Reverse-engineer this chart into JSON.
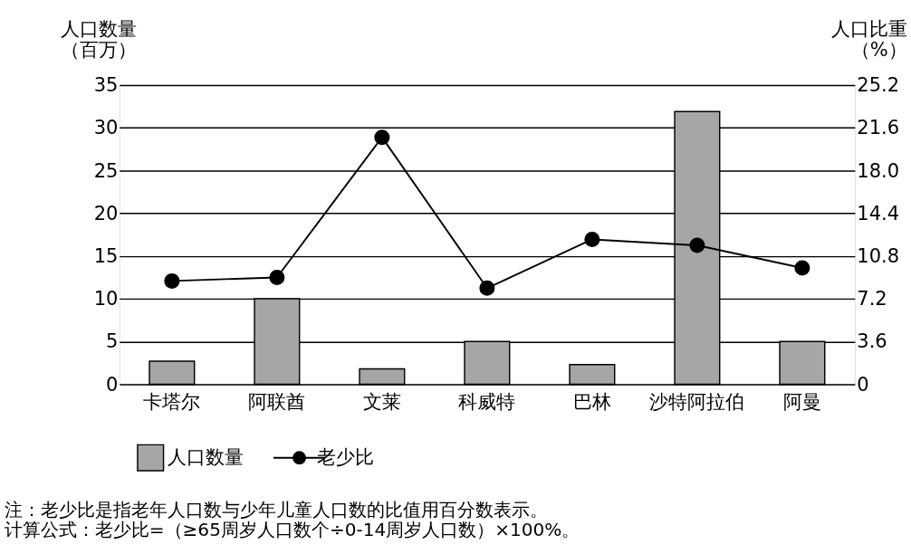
{
  "chart_data": {
    "type": "bar",
    "categories": [
      "卡塔尔",
      "阿联酋",
      "文莱",
      "科威特",
      "巴林",
      "沙特阿拉伯",
      "阿曼"
    ],
    "series": [
      {
        "name": "人口数量",
        "color": "#a6a6a6",
        "values": [
          2.7,
          10.0,
          1.8,
          5.0,
          2.3,
          31.9,
          5.0
        ]
      },
      {
        "name": "老少比",
        "type": "line",
        "axis": "y2",
        "color": "#000000",
        "marker": "circle",
        "values": [
          8.7,
          9.0,
          20.8,
          8.1,
          12.2,
          11.7,
          9.8
        ]
      }
    ],
    "ylabel": "人口数量（百万）",
    "y2label": "人口比重（%）",
    "ylim": [
      0,
      35
    ],
    "yticks": [
      0,
      5,
      10,
      15,
      20,
      25,
      30,
      35
    ],
    "y2lim": [
      0,
      25.2
    ],
    "y2ticks": [
      0,
      3.6,
      7.2,
      10.8,
      14.4,
      {
        "value": 18,
        "label": "18.0"
      },
      21.6,
      25.2
    ],
    "grid": "y",
    "legend": "bottom",
    "annotations": [
      "注：老少比是指老年人口数与少年儿童人口数的比值用百分数表示。",
      "计算公式：老少比=（≥65周岁人口数个÷0-14周岁人口数）×100%。"
    ]
  }
}
